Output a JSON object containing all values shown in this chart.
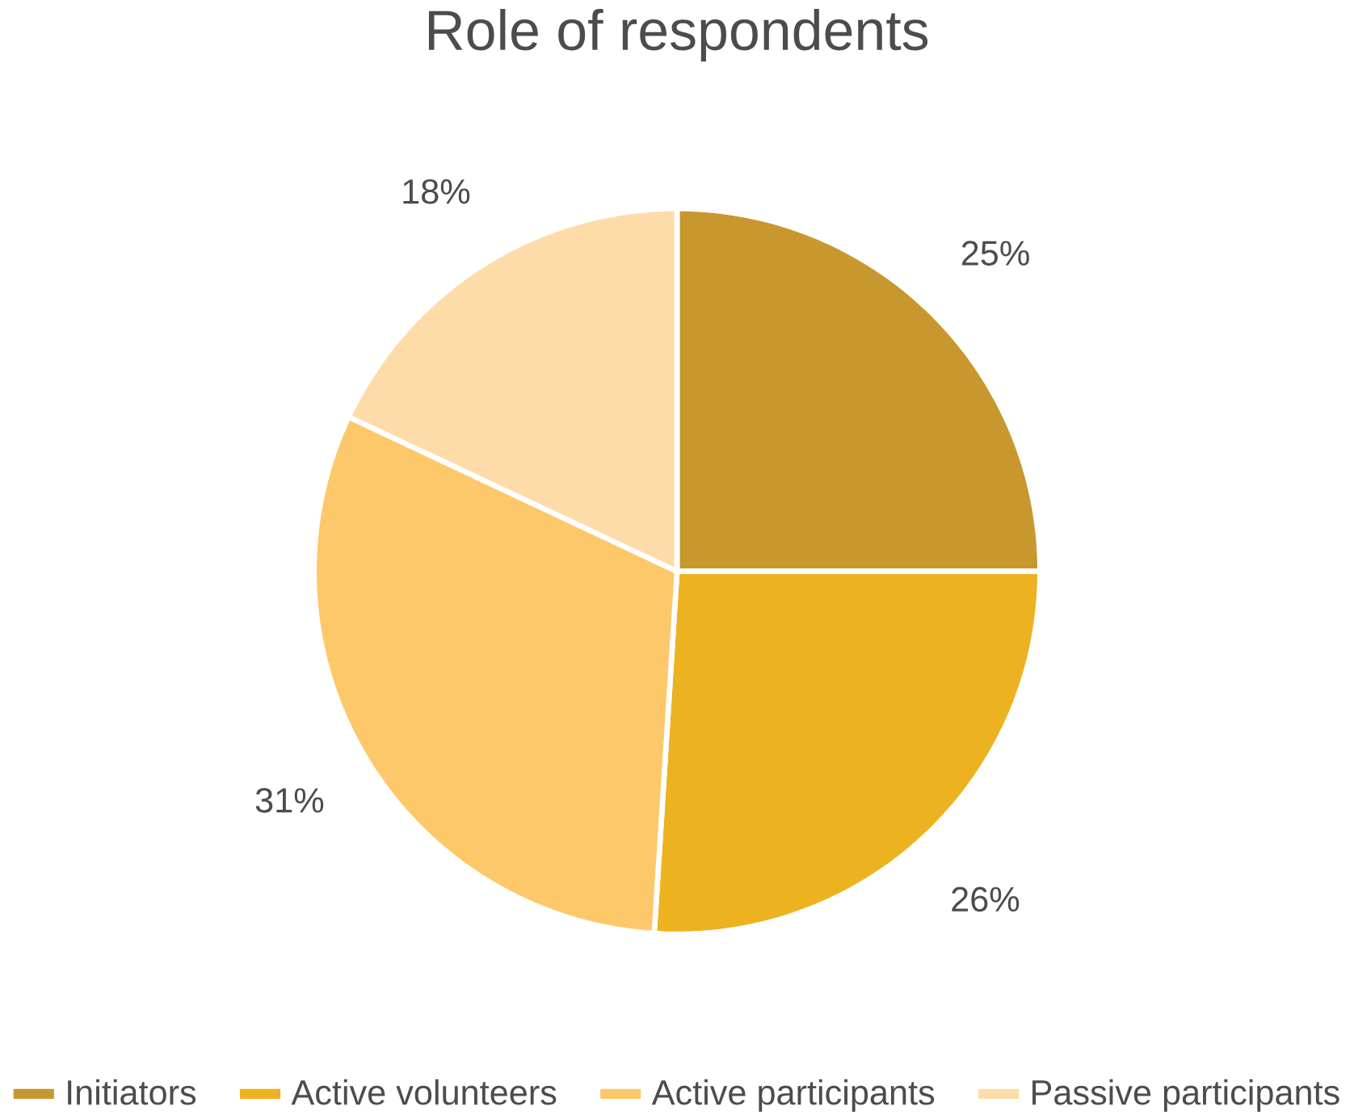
{
  "chart_data": {
    "type": "pie",
    "title": "Role of respondents",
    "categories": [
      "Initiators",
      "Active volunteers",
      "Active participants",
      "Passive participants"
    ],
    "values": [
      25,
      26,
      31,
      18
    ],
    "value_labels": [
      "25%",
      "26%",
      "31%",
      "18%"
    ],
    "colors": [
      "#c8982e",
      "#edb21f",
      "#fdc86a",
      "#fedcaa"
    ],
    "legend": "bottom"
  }
}
